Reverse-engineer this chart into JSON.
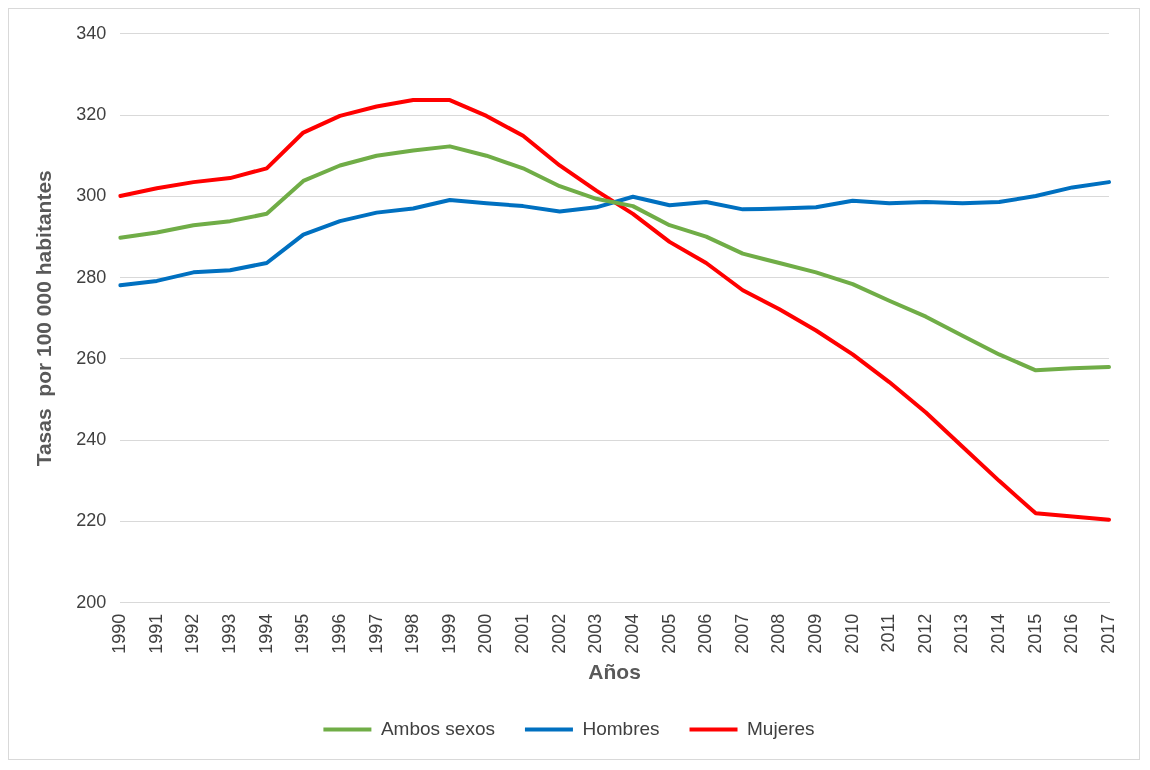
{
  "chart_data": {
    "type": "line",
    "xlabel": "Años",
    "ylabel": "Tasas  por 100 000 habitantes",
    "categories": [
      "1990",
      "1991",
      "1992",
      "1993",
      "1994",
      "1995",
      "1996",
      "1997",
      "1998",
      "1999",
      "2000",
      "2001",
      "2002",
      "2003",
      "2004",
      "2005",
      "2006",
      "2007",
      "2008",
      "2009",
      "2010",
      "2011",
      "2012",
      "2013",
      "2014",
      "2015",
      "2016",
      "2017"
    ],
    "ylim": [
      200,
      340
    ],
    "yticks": [
      200,
      220,
      240,
      260,
      280,
      300,
      320,
      340
    ],
    "grid": "y",
    "legend": "bottom",
    "marker": "none",
    "line_style": "solid",
    "series": [
      {
        "name": "Ambos sexos",
        "color": "#70ad47",
        "values": [
          289.8,
          291.1,
          292.9,
          293.9,
          295.7,
          303.8,
          307.6,
          310,
          311.3,
          312.3,
          310,
          306.9,
          302.5,
          299.4,
          297.6,
          292.9,
          290.1,
          285.9,
          283.6,
          281.3,
          278.4,
          274.3,
          270.4,
          265.7,
          261.1,
          257.2,
          257.7,
          258
        ]
      },
      {
        "name": "Hombres",
        "color": "#0070c0",
        "values": [
          278.1,
          279.2,
          281.3,
          281.8,
          283.6,
          290.6,
          293.9,
          296,
          297,
          299.1,
          298.3,
          297.6,
          296.3,
          297.3,
          299.9,
          297.8,
          298.6,
          296.8,
          297,
          297.3,
          298.9,
          298.3,
          298.6,
          298.3,
          298.6,
          300.1,
          302.2,
          303.5
        ]
      },
      {
        "name": "Mujeres",
        "color": "#ff0000",
        "values": [
          300.1,
          302,
          303.5,
          304.5,
          306.9,
          315.7,
          319.8,
          322.1,
          323.7,
          323.7,
          319.8,
          314.9,
          307.6,
          301.4,
          295.7,
          288.8,
          283.6,
          276.9,
          272.2,
          267,
          261.1,
          254.3,
          246.8,
          238.4,
          230,
          222,
          221.2,
          220.4
        ]
      }
    ]
  }
}
